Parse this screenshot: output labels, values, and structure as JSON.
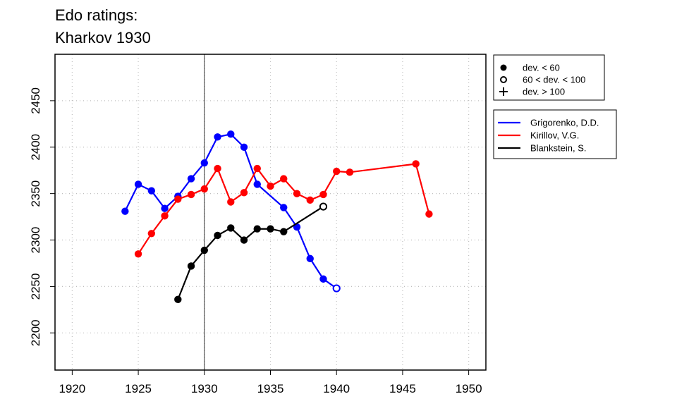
{
  "chart_data": {
    "type": "line",
    "title": [
      "Edo ratings:",
      "Kharkov 1930"
    ],
    "xlabel": "",
    "ylabel": "",
    "xlim": [
      1918.7,
      1951.3
    ],
    "ylim": [
      2160,
      2500
    ],
    "x_ticks": [
      1920,
      1925,
      1930,
      1935,
      1940,
      1945,
      1950
    ],
    "y_ticks": [
      2200,
      2250,
      2300,
      2350,
      2400,
      2450
    ],
    "grid": true,
    "reference_line_x": 1930,
    "legend_placement": "outside-right",
    "deviation_legend": [
      {
        "marker": "filled-circle",
        "label": "dev. < 60"
      },
      {
        "marker": "open-circle",
        "label": "60 < dev. < 100"
      },
      {
        "marker": "plus",
        "label": "dev. > 100"
      }
    ],
    "series": [
      {
        "name": "Grigorenko, D.D.",
        "color": "#0000ff",
        "points": [
          {
            "x": 1924,
            "y": 2331,
            "dev": "lt60"
          },
          {
            "x": 1925,
            "y": 2360,
            "dev": "lt60"
          },
          {
            "x": 1926,
            "y": 2353,
            "dev": "lt60"
          },
          {
            "x": 1927,
            "y": 2334,
            "dev": "lt60"
          },
          {
            "x": 1928,
            "y": 2347,
            "dev": "lt60"
          },
          {
            "x": 1929,
            "y": 2366,
            "dev": "lt60"
          },
          {
            "x": 1930,
            "y": 2383,
            "dev": "lt60"
          },
          {
            "x": 1931,
            "y": 2411,
            "dev": "lt60"
          },
          {
            "x": 1932,
            "y": 2414,
            "dev": "lt60"
          },
          {
            "x": 1933,
            "y": 2400,
            "dev": "lt60"
          },
          {
            "x": 1934,
            "y": 2360,
            "dev": "lt60"
          },
          {
            "x": 1936,
            "y": 2335,
            "dev": "lt60"
          },
          {
            "x": 1937,
            "y": 2314,
            "dev": "lt60"
          },
          {
            "x": 1938,
            "y": 2280,
            "dev": "lt60"
          },
          {
            "x": 1939,
            "y": 2258,
            "dev": "lt60"
          },
          {
            "x": 1940,
            "y": 2248,
            "dev": "60to100"
          }
        ]
      },
      {
        "name": "Kirillov, V.G.",
        "color": "#ff0000",
        "points": [
          {
            "x": 1925,
            "y": 2285,
            "dev": "lt60"
          },
          {
            "x": 1926,
            "y": 2307,
            "dev": "lt60"
          },
          {
            "x": 1927,
            "y": 2326,
            "dev": "lt60"
          },
          {
            "x": 1928,
            "y": 2344,
            "dev": "lt60"
          },
          {
            "x": 1929,
            "y": 2349,
            "dev": "lt60"
          },
          {
            "x": 1930,
            "y": 2355,
            "dev": "lt60"
          },
          {
            "x": 1931,
            "y": 2377,
            "dev": "lt60"
          },
          {
            "x": 1932,
            "y": 2341,
            "dev": "lt60"
          },
          {
            "x": 1933,
            "y": 2351,
            "dev": "lt60"
          },
          {
            "x": 1934,
            "y": 2377,
            "dev": "lt60"
          },
          {
            "x": 1935,
            "y": 2358,
            "dev": "lt60"
          },
          {
            "x": 1936,
            "y": 2366,
            "dev": "lt60"
          },
          {
            "x": 1937,
            "y": 2350,
            "dev": "lt60"
          },
          {
            "x": 1938,
            "y": 2343,
            "dev": "lt60"
          },
          {
            "x": 1939,
            "y": 2349,
            "dev": "lt60"
          },
          {
            "x": 1940,
            "y": 2374,
            "dev": "lt60"
          },
          {
            "x": 1941,
            "y": 2373,
            "dev": "lt60"
          },
          {
            "x": 1946,
            "y": 2382,
            "dev": "lt60"
          },
          {
            "x": 1947,
            "y": 2328,
            "dev": "lt60"
          }
        ]
      },
      {
        "name": "Blankstein, S.",
        "color": "#000000",
        "points": [
          {
            "x": 1928,
            "y": 2236,
            "dev": "lt60"
          },
          {
            "x": 1929,
            "y": 2272,
            "dev": "lt60"
          },
          {
            "x": 1930,
            "y": 2289,
            "dev": "lt60"
          },
          {
            "x": 1931,
            "y": 2305,
            "dev": "lt60"
          },
          {
            "x": 1932,
            "y": 2313,
            "dev": "lt60"
          },
          {
            "x": 1933,
            "y": 2300,
            "dev": "lt60"
          },
          {
            "x": 1934,
            "y": 2312,
            "dev": "lt60"
          },
          {
            "x": 1935,
            "y": 2312,
            "dev": "lt60"
          },
          {
            "x": 1936,
            "y": 2309,
            "dev": "lt60"
          },
          {
            "x": 1939,
            "y": 2336,
            "dev": "60to100"
          }
        ]
      }
    ]
  }
}
